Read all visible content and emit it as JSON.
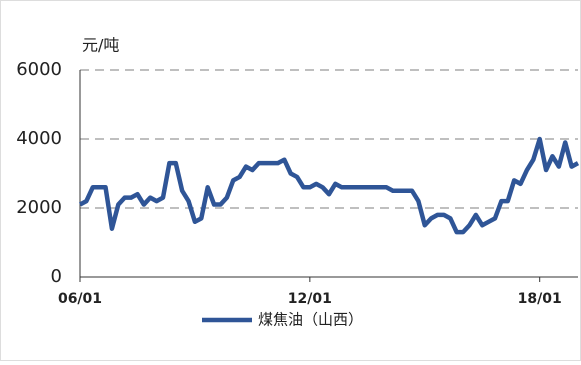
{
  "chart_data": {
    "type": "line",
    "y_label": "元/吨",
    "categories": [
      "06/01",
      null,
      null,
      null,
      null,
      null,
      null,
      null,
      null,
      null,
      null,
      null,
      null,
      null,
      null,
      null,
      null,
      null,
      null,
      null,
      null,
      null,
      null,
      null,
      null,
      null,
      null,
      null,
      null,
      null,
      null,
      null,
      null,
      null,
      null,
      null,
      "12/01",
      null,
      null,
      null,
      null,
      null,
      null,
      null,
      null,
      null,
      null,
      null,
      null,
      null,
      null,
      null,
      null,
      null,
      null,
      null,
      null,
      null,
      null,
      null,
      null,
      null,
      null,
      null,
      null,
      null,
      null,
      null,
      null,
      null,
      null,
      null,
      "18/01",
      null,
      null,
      null,
      null,
      null,
      null
    ],
    "series": [
      {
        "name": "煤焦油（山西）",
        "color": "#2f5597",
        "values": [
          2100,
          2200,
          2600,
          2600,
          2600,
          1400,
          2100,
          2300,
          2300,
          2400,
          2100,
          2300,
          2200,
          2300,
          3300,
          3300,
          2500,
          2200,
          1600,
          1700,
          2600,
          2100,
          2100,
          2300,
          2800,
          2900,
          3200,
          3100,
          3300,
          3300,
          3300,
          3300,
          3400,
          3000,
          2900,
          2600,
          2600,
          2700,
          2600,
          2400,
          2700,
          2600,
          2600,
          2600,
          2600,
          2600,
          2600,
          2600,
          2600,
          2500,
          2500,
          2500,
          2500,
          2200,
          1500,
          1700,
          1800,
          1800,
          1700,
          1300,
          1300,
          1500,
          1800,
          1500,
          1600,
          1700,
          2200,
          2200,
          2800,
          2700,
          3100,
          3400,
          4000,
          3100,
          3500,
          3200,
          3900,
          3200,
          3300
        ]
      }
    ],
    "ylim": [
      0,
      6000
    ],
    "yticks": [
      0,
      2000,
      4000,
      6000
    ],
    "grid": true,
    "legend": "bottom"
  }
}
